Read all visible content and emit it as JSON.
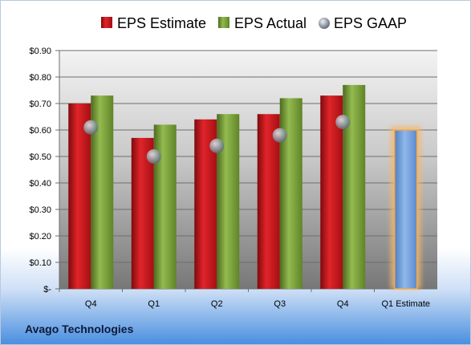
{
  "company": "Avago Technologies",
  "chart_data": {
    "type": "bar",
    "categories": [
      "Q4",
      "Q1",
      "Q2",
      "Q3",
      "Q4",
      "Q1 Estimate"
    ],
    "series": [
      {
        "name": "EPS Estimate",
        "kind": "bar",
        "color": "#c8171c",
        "values": [
          0.7,
          0.57,
          0.64,
          0.66,
          0.73,
          null
        ]
      },
      {
        "name": "EPS Actual",
        "kind": "bar",
        "color": "#7aa13a",
        "values": [
          0.73,
          0.62,
          0.66,
          0.72,
          0.77,
          null
        ]
      },
      {
        "name": "EPS GAAP",
        "kind": "marker",
        "color": "#8f9aa6",
        "values": [
          0.61,
          0.5,
          0.54,
          0.58,
          0.63,
          null
        ]
      },
      {
        "kind": "bar",
        "color": "#6f9fd8",
        "highlight": "#f4b870",
        "values": [
          null,
          null,
          null,
          null,
          null,
          0.6
        ]
      }
    ],
    "ylim": [
      0,
      0.9
    ],
    "yticks": [
      0,
      0.1,
      0.2,
      0.3,
      0.4,
      0.5,
      0.6,
      0.7,
      0.8,
      0.9
    ],
    "ytick_labels": [
      "$-",
      "$0.10",
      "$0.20",
      "$0.30",
      "$0.40",
      "$0.50",
      "$0.60",
      "$0.70",
      "$0.80",
      "$0.90"
    ],
    "grid": true,
    "legend_position": "top-center"
  }
}
